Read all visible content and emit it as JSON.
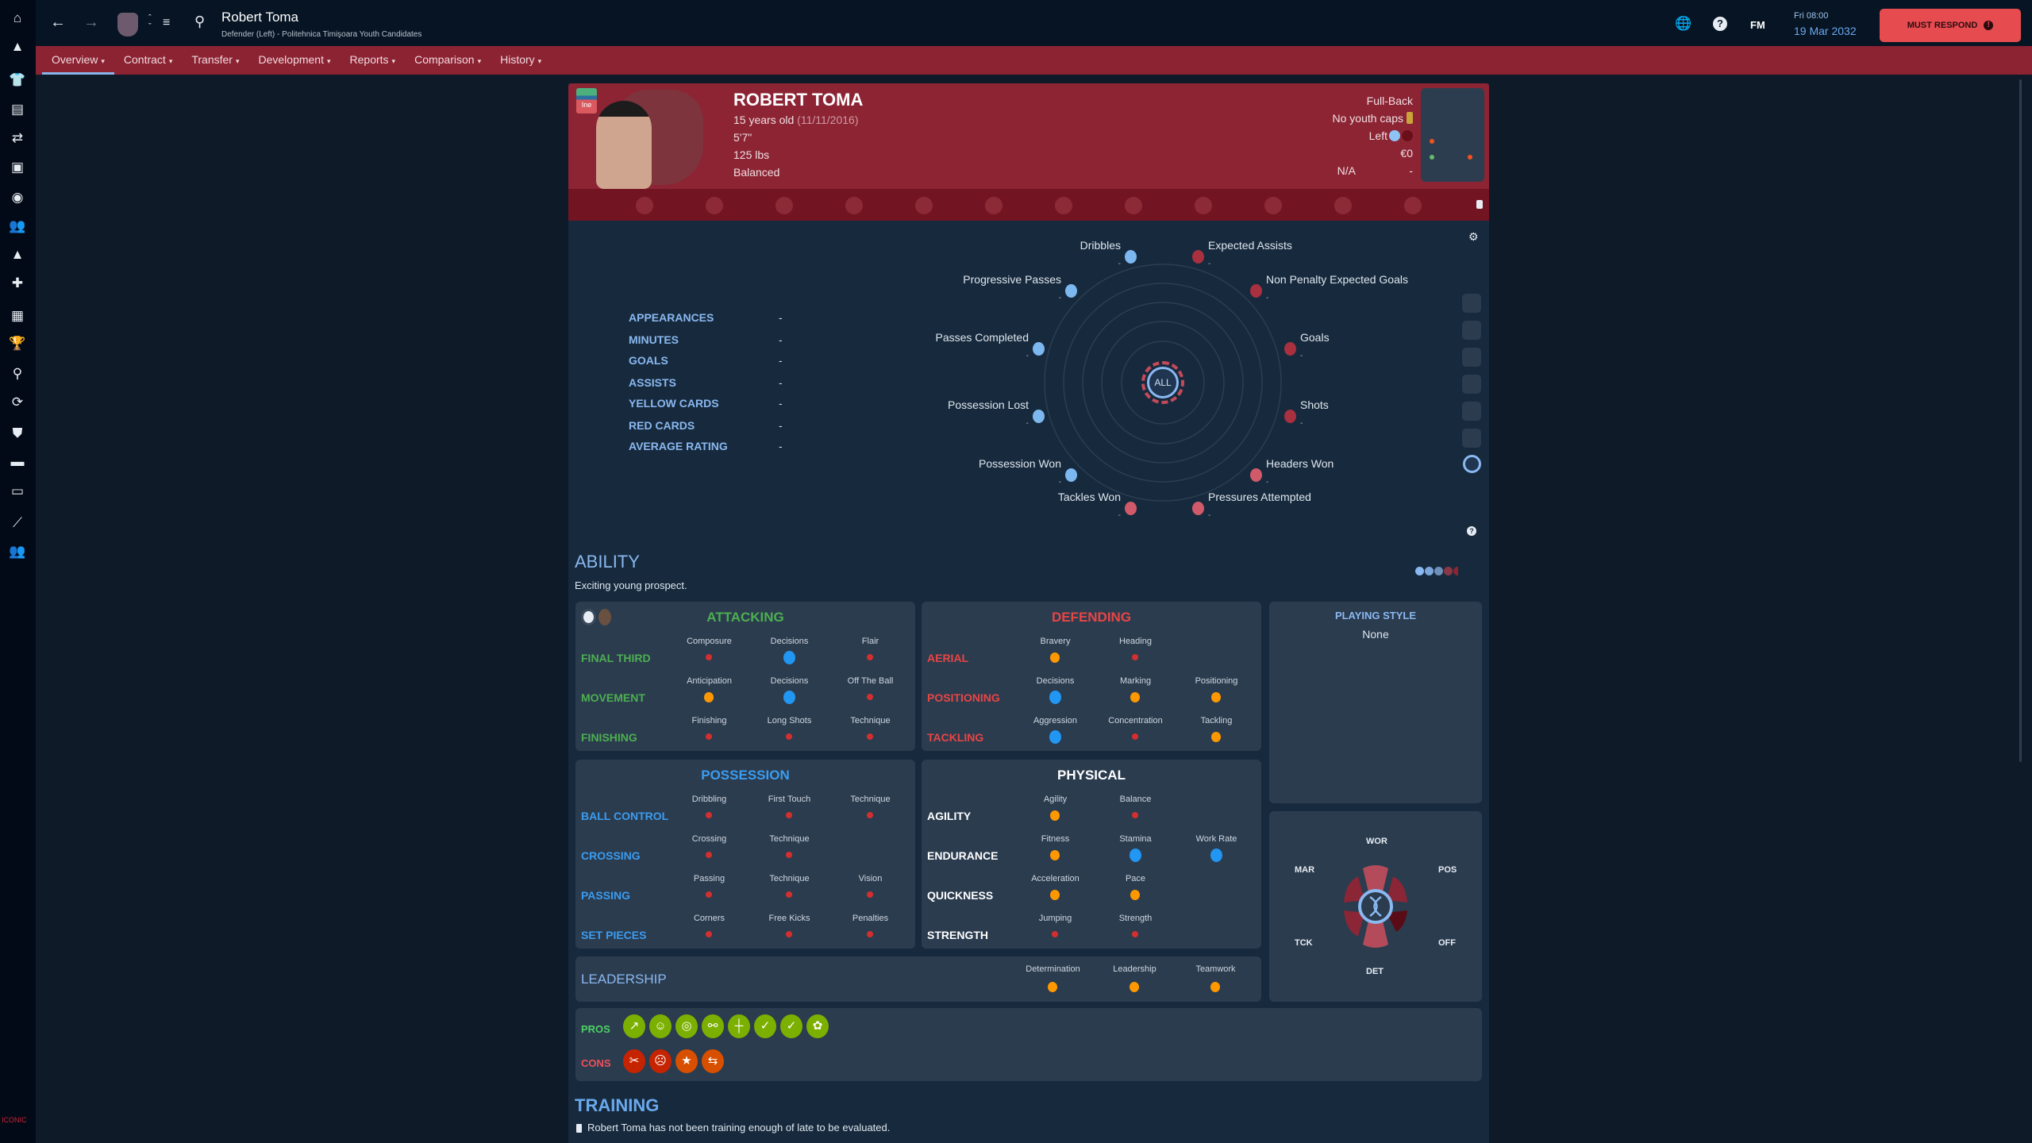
{
  "topbar": {
    "title": "Robert Toma",
    "subtitle": "Defender (Left) - Politehnica Timişoara Youth Candidates",
    "fm_label": "FM",
    "time": "Fri 08:00",
    "date": "19 Mar 2032",
    "must_respond": "MUST RESPOND"
  },
  "sidebar_icons": [
    "home-icon",
    "inbox-icon",
    "squad-shirt-icon",
    "tactics-clipboard-icon",
    "transfers-icon",
    "dynamics-icon",
    "data-hub-icon",
    "staff-icon",
    "scouting-icon",
    "medical-icon",
    "schedule-icon",
    "competitions-icon",
    "search-icon",
    "player-search-icon",
    "club-info-icon",
    "club-vision-icon",
    "finances-icon",
    "development-icon",
    "youth-u19-icon"
  ],
  "tabs": [
    {
      "label": "Overview",
      "active": true
    },
    {
      "label": "Contract"
    },
    {
      "label": "Transfer"
    },
    {
      "label": "Development"
    },
    {
      "label": "Reports"
    },
    {
      "label": "Comparison"
    },
    {
      "label": "History"
    }
  ],
  "player": {
    "badge": "Ine",
    "name": "ROBERT TOMA",
    "age": "15 years old",
    "dob": "(11/11/2016)",
    "height": "5'7\"",
    "weight": "125 lbs",
    "personality": "Balanced",
    "position": "Full-Back",
    "caps": "No youth caps",
    "foot": "Left",
    "value": "€0",
    "wage": "N/A",
    "wage_extra": "-"
  },
  "stats": [
    {
      "label": "APPEARANCES",
      "value": "-"
    },
    {
      "label": "MINUTES",
      "value": "-"
    },
    {
      "label": "GOALS",
      "value": "-"
    },
    {
      "label": "ASSISTS",
      "value": "-"
    },
    {
      "label": "YELLOW CARDS",
      "value": "-"
    },
    {
      "label": "RED CARDS",
      "value": "-"
    },
    {
      "label": "AVERAGE RATING",
      "value": "-"
    }
  ],
  "radar": {
    "center_label": "ALL",
    "metrics": [
      {
        "label": "Dribbles",
        "value": "-",
        "group": "possession"
      },
      {
        "label": "Expected Assists",
        "value": "-",
        "group": "attack"
      },
      {
        "label": "Progressive Passes",
        "value": "-",
        "group": "possession"
      },
      {
        "label": "Non Penalty Expected Goals",
        "value": "-",
        "group": "attack"
      },
      {
        "label": "Passes Completed",
        "value": "-",
        "group": "possession"
      },
      {
        "label": "Goals",
        "value": "-",
        "group": "attack"
      },
      {
        "label": "Possession Lost",
        "value": "-",
        "group": "possession"
      },
      {
        "label": "Shots",
        "value": "-",
        "group": "attack"
      },
      {
        "label": "Possession Won",
        "value": "-",
        "group": "possession"
      },
      {
        "label": "Headers Won",
        "value": "-",
        "group": "defence"
      },
      {
        "label": "Tackles Won",
        "value": "-",
        "group": "defence"
      },
      {
        "label": "Pressures Attempted",
        "value": "-",
        "group": "defence"
      }
    ]
  },
  "ability": {
    "title": "ABILITY",
    "summary": "Exciting young prospect.",
    "playing_style_title": "PLAYING STYLE",
    "playing_style": "None",
    "cards": [
      {
        "title": "ATTACKING",
        "color": "#4caf50",
        "rows": [
          {
            "label": "FINAL THIRD",
            "attrs": [
              {
                "name": "Composure",
                "level": "low"
              },
              {
                "name": "Decisions",
                "level": "high"
              },
              {
                "name": "Flair",
                "level": "low"
              }
            ]
          },
          {
            "label": "MOVEMENT",
            "attrs": [
              {
                "name": "Anticipation",
                "level": "mid"
              },
              {
                "name": "Decisions",
                "level": "high"
              },
              {
                "name": "Off The Ball",
                "level": "low"
              }
            ]
          },
          {
            "label": "FINISHING",
            "attrs": [
              {
                "name": "Finishing",
                "level": "low"
              },
              {
                "name": "Long Shots",
                "level": "low"
              },
              {
                "name": "Technique",
                "level": "low"
              }
            ]
          }
        ]
      },
      {
        "title": "DEFENDING",
        "color": "#e84545",
        "rows": [
          {
            "label": "AERIAL",
            "attrs": [
              {
                "name": "Bravery",
                "level": "mid"
              },
              {
                "name": "Heading",
                "level": "low"
              }
            ]
          },
          {
            "label": "POSITIONING",
            "attrs": [
              {
                "name": "Decisions",
                "level": "high"
              },
              {
                "name": "Marking",
                "level": "mid"
              },
              {
                "name": "Positioning",
                "level": "mid"
              }
            ]
          },
          {
            "label": "TACKLING",
            "attrs": [
              {
                "name": "Aggression",
                "level": "high"
              },
              {
                "name": "Concentration",
                "level": "low"
              },
              {
                "name": "Tackling",
                "level": "mid"
              }
            ]
          }
        ]
      },
      {
        "title": "POSSESSION",
        "color": "#3b9cf0",
        "rows": [
          {
            "label": "BALL CONTROL",
            "attrs": [
              {
                "name": "Dribbling",
                "level": "low"
              },
              {
                "name": "First Touch",
                "level": "low"
              },
              {
                "name": "Technique",
                "level": "low"
              }
            ]
          },
          {
            "label": "CROSSING",
            "attrs": [
              {
                "name": "Crossing",
                "level": "low"
              },
              {
                "name": "Technique",
                "level": "low"
              }
            ]
          },
          {
            "label": "PASSING",
            "attrs": [
              {
                "name": "Passing",
                "level": "low"
              },
              {
                "name": "Technique",
                "level": "low"
              },
              {
                "name": "Vision",
                "level": "low"
              }
            ]
          },
          {
            "label": "SET PIECES",
            "attrs": [
              {
                "name": "Corners",
                "level": "low"
              },
              {
                "name": "Free Kicks",
                "level": "low"
              },
              {
                "name": "Penalties",
                "level": "low"
              }
            ]
          }
        ]
      },
      {
        "title": "PHYSICAL",
        "color": "#ffffff",
        "rows": [
          {
            "label": "AGILITY",
            "attrs": [
              {
                "name": "Agility",
                "level": "mid"
              },
              {
                "name": "Balance",
                "level": "low"
              }
            ]
          },
          {
            "label": "ENDURANCE",
            "attrs": [
              {
                "name": "Fitness",
                "level": "mid"
              },
              {
                "name": "Stamina",
                "level": "high"
              },
              {
                "name": "Work Rate",
                "level": "high"
              }
            ]
          },
          {
            "label": "QUICKNESS",
            "attrs": [
              {
                "name": "Acceleration",
                "level": "mid"
              },
              {
                "name": "Pace",
                "level": "mid"
              }
            ]
          },
          {
            "label": "STRENGTH",
            "attrs": [
              {
                "name": "Jumping",
                "level": "low"
              },
              {
                "name": "Strength",
                "level": "low"
              }
            ]
          }
        ]
      }
    ],
    "leadership": {
      "label": "LEADERSHIP",
      "attrs": [
        {
          "name": "Determination",
          "level": "mid"
        },
        {
          "name": "Leadership",
          "level": "mid"
        },
        {
          "name": "Teamwork",
          "level": "mid"
        }
      ]
    },
    "wheel": {
      "top": "WOR",
      "top_left": "MAR",
      "top_right": "POS",
      "bottom_left": "TCK",
      "bottom_right": "OFF",
      "bottom": "DET"
    },
    "pros_label": "PROS",
    "cons_label": "CONS",
    "pros": [
      "improving-trend-icon",
      "mental-icon",
      "target-icon",
      "link-icon",
      "signpost-icon",
      "report-check-icon",
      "report-check-icon",
      "growth-report-icon"
    ],
    "cons": [
      "broken-link-icon",
      "mental-weak-icon",
      "star-icon",
      "swap-arrows-icon"
    ]
  },
  "training": {
    "title": "TRAINING",
    "message": "Robert Toma has not been training enough of late to be evaluated."
  },
  "colors": {
    "level_low": "#d32f2f",
    "level_mid": "#ff9800",
    "level_high": "#2196f3",
    "accent": "#8c2434",
    "must_respond": "#e54b4f"
  }
}
